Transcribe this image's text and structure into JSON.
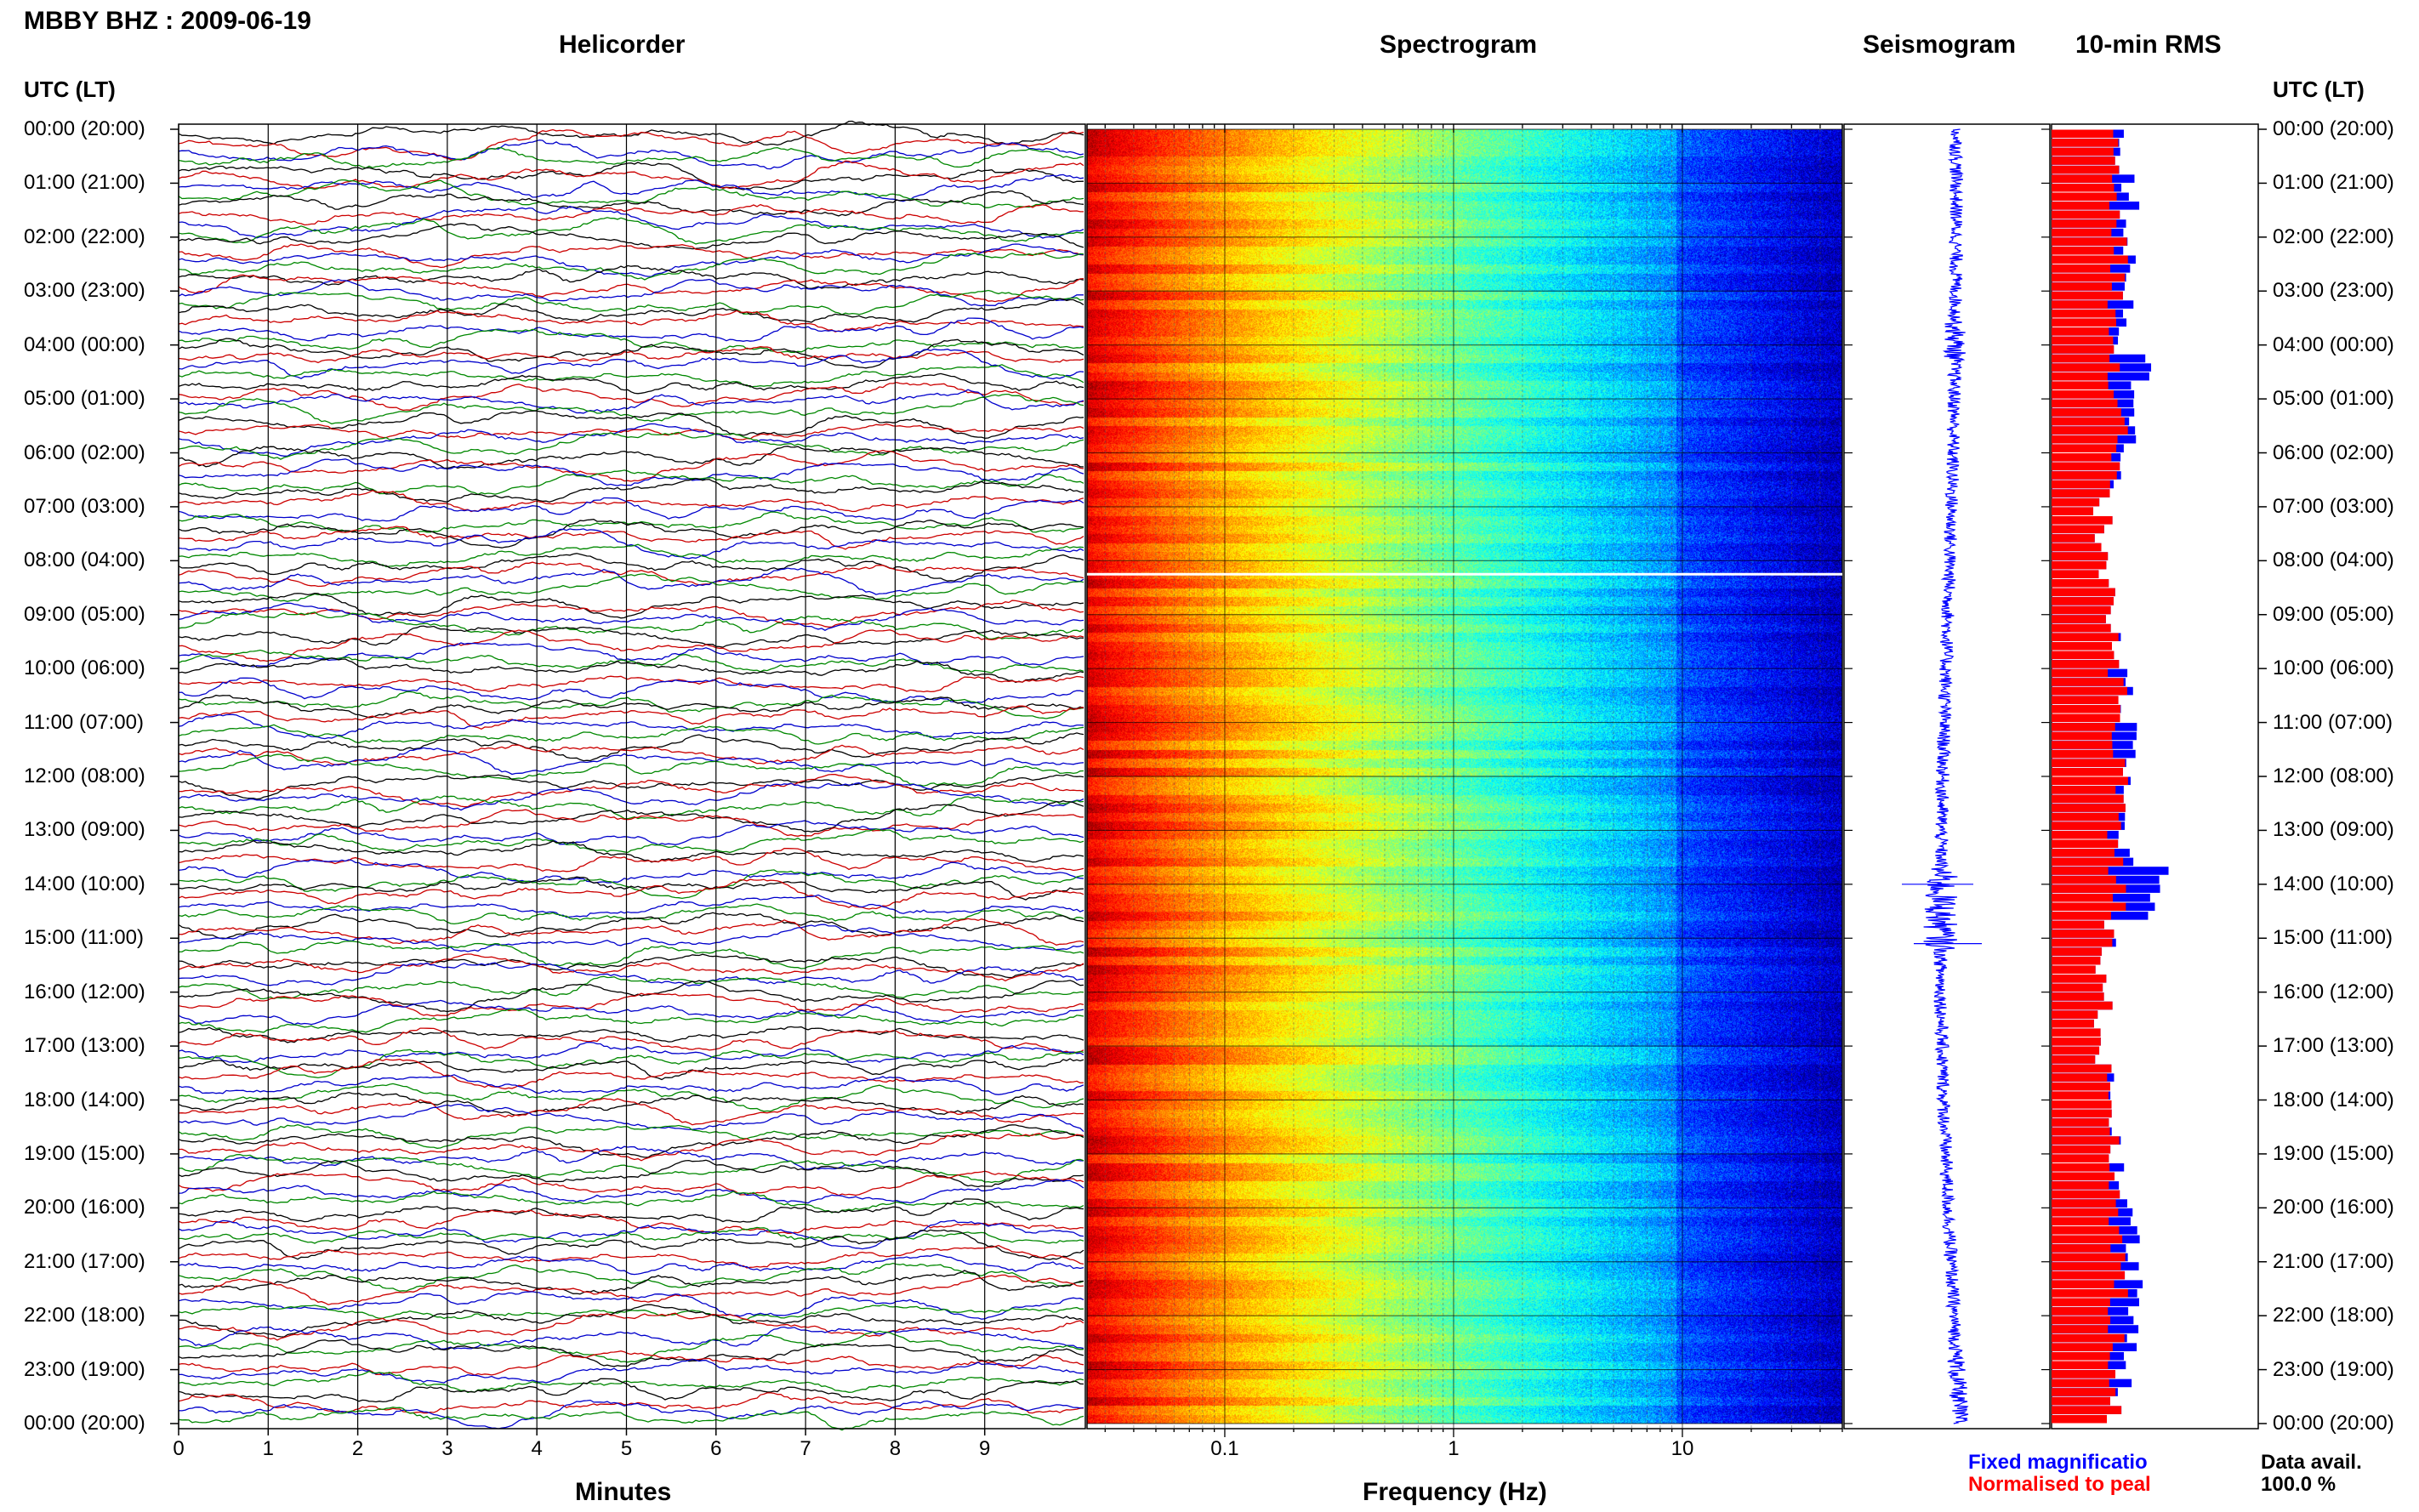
{
  "page_title": "MBBY BHZ : 2009-06-19",
  "time_axis_label": "UTC (LT)",
  "hour_labels": [
    "00:00 (20:00)",
    "01:00 (21:00)",
    "02:00 (22:00)",
    "03:00 (23:00)",
    "04:00 (00:00)",
    "05:00 (01:00)",
    "06:00 (02:00)",
    "07:00 (03:00)",
    "08:00 (04:00)",
    "09:00 (05:00)",
    "10:00 (06:00)",
    "11:00 (07:00)",
    "12:00 (08:00)",
    "13:00 (09:00)",
    "14:00 (10:00)",
    "15:00 (11:00)",
    "16:00 (12:00)",
    "17:00 (13:00)",
    "18:00 (14:00)",
    "19:00 (15:00)",
    "20:00 (16:00)",
    "21:00 (17:00)",
    "22:00 (18:00)",
    "23:00 (19:00)",
    "00:00 (20:00)"
  ],
  "panels": {
    "helicorder": {
      "title": "Helicorder",
      "xlabel": "Minutes",
      "ticks": [
        "0",
        "1",
        "2",
        "3",
        "4",
        "5",
        "6",
        "7",
        "8",
        "9"
      ]
    },
    "spectrogram": {
      "title": "Spectrogram",
      "xlabel": "Frequency (Hz)",
      "ticks": [
        "0.1",
        "1",
        "10"
      ]
    },
    "seismogram": {
      "title": "Seismogram"
    },
    "rms": {
      "title": "10-min RMS"
    }
  },
  "legend": {
    "fixed": "Fixed magnificatio",
    "normalised": "Normalised to peal",
    "data_avail_label": "Data avail.",
    "data_avail_value": "100.0 %"
  },
  "colors": {
    "fixed": "#0000ff",
    "normalised": "#ff0000",
    "trace_cycle": [
      "#000000",
      "#cc0000",
      "#0000cc",
      "#008800"
    ]
  },
  "chart_data": [
    {
      "type": "line",
      "title": "Helicorder",
      "xlabel": "Minutes",
      "xlim": [
        0,
        10
      ],
      "rows_per_hour": 6,
      "hours": 24,
      "note": "10-minute trace rows, 144 total"
    },
    {
      "type": "heatmap",
      "title": "Spectrogram",
      "xlabel": "Frequency (Hz)",
      "x_scale": "log",
      "xlim": [
        0.025,
        50
      ],
      "rows": 144
    },
    {
      "type": "line",
      "title": "Seismogram",
      "hours": 24
    },
    {
      "type": "bar",
      "title": "10-min RMS",
      "series": [
        {
          "name": "Fixed magnificatio"
        },
        {
          "name": "Normalised to peal"
        }
      ],
      "rows": 144
    }
  ]
}
